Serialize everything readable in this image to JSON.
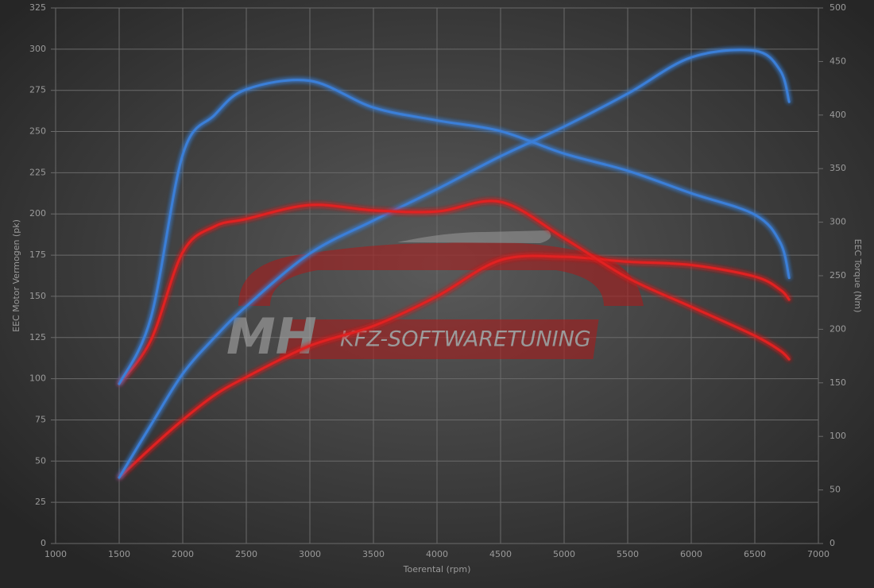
{
  "chart_data": {
    "type": "line",
    "x_label": "Toerental (rpm)",
    "y_label": "EEC Motor Vermogen (pk)",
    "y2_label": "EEC Torque (Nm)",
    "watermark": [
      "MH",
      "KFZ-SOFTWARETUNING"
    ],
    "x": [
      1500,
      1750,
      2000,
      2250,
      2500,
      3000,
      3500,
      4000,
      4500,
      5000,
      5500,
      6000,
      6500,
      6700,
      6770
    ],
    "series": [
      {
        "color": "#e02020",
        "axis": "y",
        "values": [
          40,
          58,
          75,
          90,
          101,
          120,
          132,
          150,
          172,
          174,
          171,
          169,
          162,
          154,
          148
        ]
      },
      {
        "color": "#3a7fd8",
        "axis": "y",
        "values": [
          40,
          72,
          103,
          125,
          144,
          176,
          196,
          215,
          235,
          253,
          273,
          295,
          299,
          287,
          268
        ]
      },
      {
        "color": "#e02020",
        "axis": "y2",
        "values": [
          149,
          190,
          272,
          296,
          303,
          316,
          311,
          310,
          319,
          285,
          248,
          221,
          194,
          180,
          172
        ]
      },
      {
        "color": "#3a7fd8",
        "axis": "y2",
        "values": [
          149,
          211,
          363,
          400,
          424,
          432,
          407,
          395,
          385,
          364,
          348,
          327,
          307,
          281,
          248
        ]
      }
    ],
    "xlim": [
      1000,
      7000
    ],
    "xticks": [
      1000,
      1500,
      2000,
      2500,
      3000,
      3500,
      4000,
      4500,
      5000,
      5500,
      6000,
      6500,
      7000
    ],
    "ylim": [
      0,
      325
    ],
    "yticks": [
      0,
      25,
      50,
      75,
      100,
      125,
      150,
      175,
      200,
      225,
      250,
      275,
      300,
      325
    ],
    "y2lim": [
      0,
      500
    ],
    "y2ticks": [
      0,
      50,
      100,
      150,
      200,
      250,
      300,
      350,
      400,
      450,
      500
    ],
    "grid": true
  }
}
